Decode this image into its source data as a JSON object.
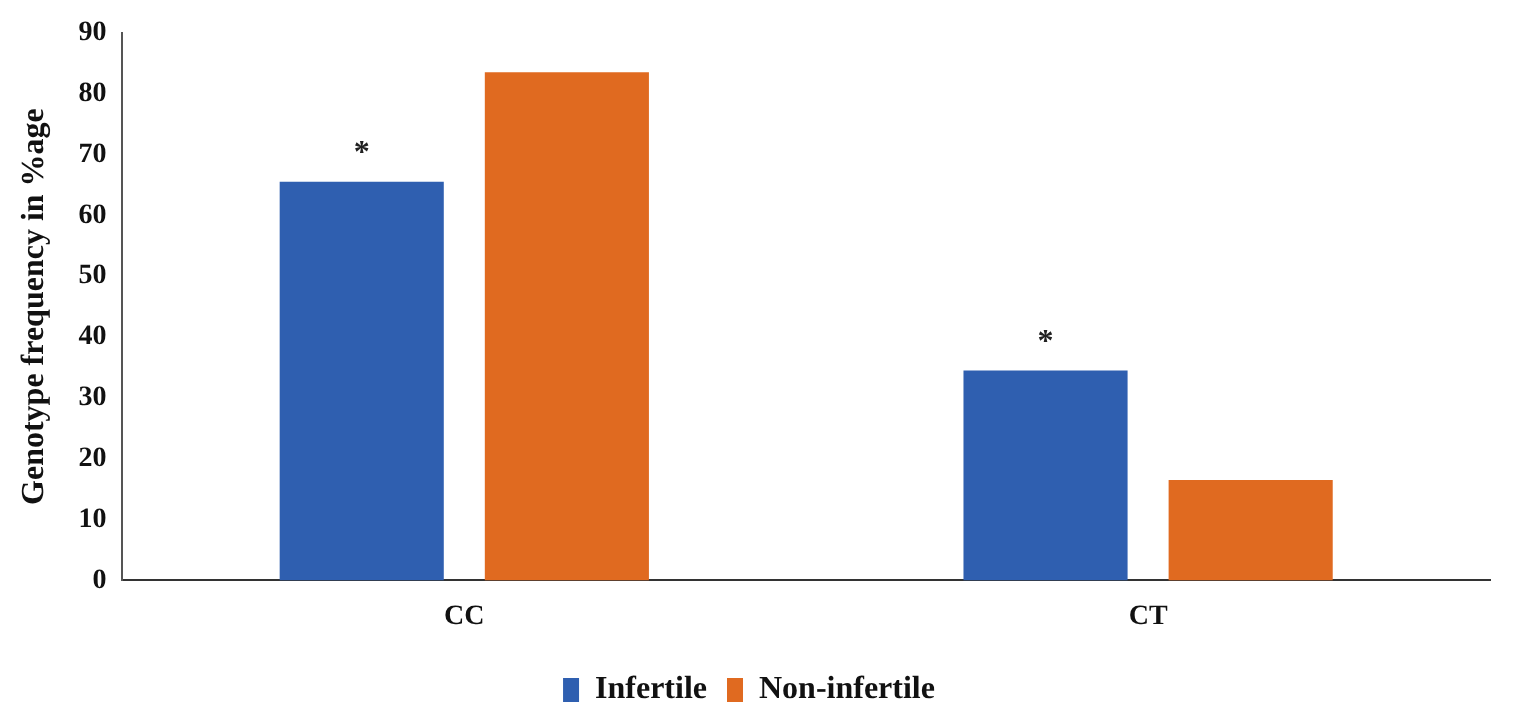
{
  "chart_data": {
    "type": "bar",
    "ylabel": "Genotype frequency in %age",
    "categories": [
      "CC",
      "CT"
    ],
    "series": [
      {
        "name": "Infertile",
        "color": "#2f5fb0",
        "values": [
          65.5,
          34.5
        ]
      },
      {
        "name": "Non-infertile",
        "color": "#e06a20",
        "values": [
          83.5,
          16.5
        ]
      }
    ],
    "ylim": [
      0,
      90
    ],
    "yticks": [
      0,
      10,
      20,
      30,
      40,
      50,
      60,
      70,
      80,
      90
    ],
    "grid": false,
    "legend": "bottom",
    "annotations": [
      "*",
      "*"
    ]
  }
}
